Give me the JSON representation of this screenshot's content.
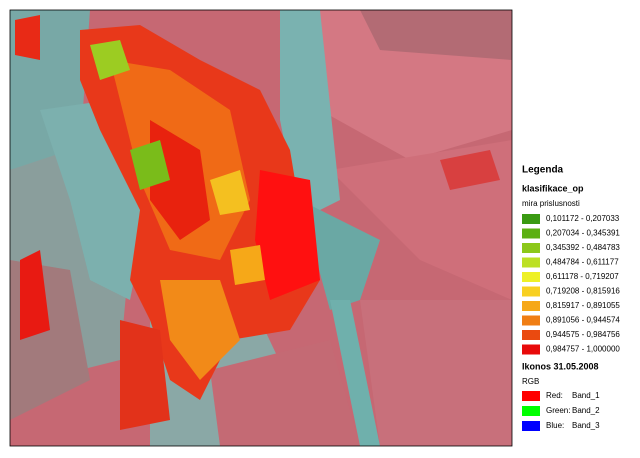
{
  "legend": {
    "title": "Legenda",
    "layer": "klasifikace_op",
    "field": "mira prislusnosti",
    "classes": [
      {
        "label": "0,101172 - 0,207033",
        "color": "#3a9a12"
      },
      {
        "label": "0,207034 - 0,345391",
        "color": "#5cb012"
      },
      {
        "label": "0,345392 - 0,484783",
        "color": "#8cc81a"
      },
      {
        "label": "0,484784 - 0,611177",
        "color": "#bce024"
      },
      {
        "label": "0,611178 - 0,719207",
        "color": "#eef026"
      },
      {
        "label": "0,719208 - 0,815916",
        "color": "#f8d020"
      },
      {
        "label": "0,815917 - 0,891055",
        "color": "#f6a818"
      },
      {
        "label": "0,891056 - 0,944574",
        "color": "#f07e14"
      },
      {
        "label": "0,944575 - 0,984756",
        "color": "#ea4a10"
      },
      {
        "label": "0,984757 - 1,000000",
        "color": "#e80a0a"
      }
    ],
    "image": "Ikonos 31.05.2008",
    "composite": "RGB",
    "bands": [
      {
        "channel": "Red:",
        "band": "Band_1",
        "color": "#ff0000"
      },
      {
        "channel": "Green:",
        "band": "Band_2",
        "color": "#00ff00"
      },
      {
        "channel": "Blue:",
        "band": "Band_3",
        "color": "#0000ff"
      }
    ]
  }
}
